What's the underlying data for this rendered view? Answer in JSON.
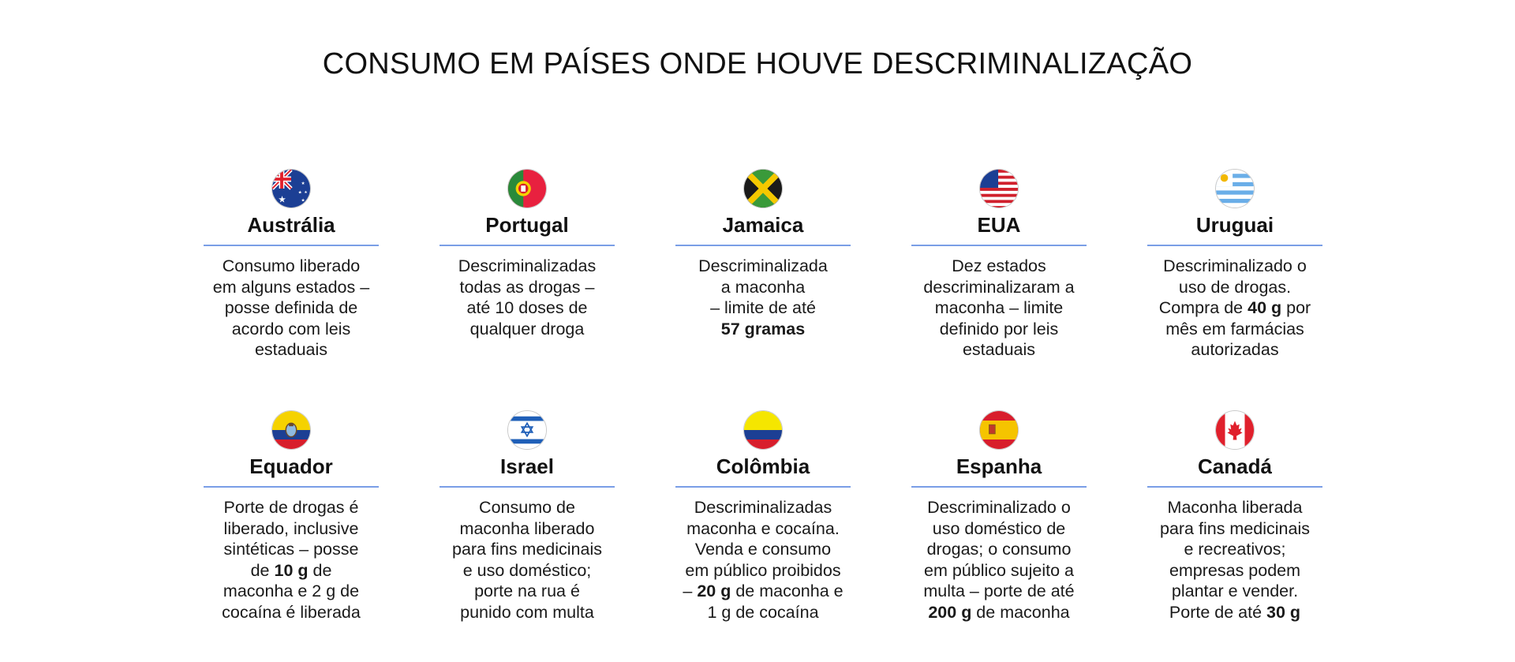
{
  "title": "CONSUMO EM PAÍSES ONDE HOUVE DESCRIMINALIZAÇÃO",
  "colors": {
    "rule": "#7a9ee6"
  },
  "countries": [
    {
      "name": "Austrália",
      "flag_icon": "australia-flag-icon",
      "desc": [
        "Consumo liberado",
        "em alguns estados –",
        "posse definida de",
        "acordo com leis",
        "estaduais"
      ]
    },
    {
      "name": "Portugal",
      "flag_icon": "portugal-flag-icon",
      "desc": [
        "Descriminalizadas",
        "todas as drogas –",
        "até 10 doses de",
        "qualquer droga"
      ]
    },
    {
      "name": "Jamaica",
      "flag_icon": "jamaica-flag-icon",
      "desc": [
        "Descriminalizada",
        "a maconha",
        "– limite de até"
      ],
      "bold_line": "57 gramas"
    },
    {
      "name": "EUA",
      "flag_icon": "usa-flag-icon",
      "desc": [
        "Dez estados",
        "descriminalizaram a",
        "maconha – limite",
        "definido por leis",
        "estaduais"
      ]
    },
    {
      "name": "Uruguai",
      "flag_icon": "uruguay-flag-icon",
      "desc_a": [
        "Descriminalizado o",
        "uso de drogas."
      ],
      "desc_b_pre": "Compra de ",
      "desc_b_bold": "40 g",
      "desc_b_post": " por",
      "desc_c": [
        "mês em farmácias",
        "autorizadas"
      ]
    },
    {
      "name": "Equador",
      "flag_icon": "ecuador-flag-icon",
      "desc_a": [
        "Porte de drogas é",
        "liberado, inclusive",
        "sintéticas – posse"
      ],
      "desc_b_pre": "de ",
      "desc_b_bold": "10 g",
      "desc_b_post": " de",
      "desc_c": [
        "maconha e 2 g de",
        "cocaína é liberada"
      ]
    },
    {
      "name": "Israel",
      "flag_icon": "israel-flag-icon",
      "desc": [
        "Consumo de",
        "maconha liberado",
        "para fins medicinais",
        "e uso doméstico;",
        "porte na rua é",
        "punido com multa"
      ]
    },
    {
      "name": "Colômbia",
      "flag_icon": "colombia-flag-icon",
      "desc_a": [
        "Descriminalizadas",
        "maconha e cocaína.",
        "Venda e consumo",
        "em público proibidos"
      ],
      "desc_b_pre": "– ",
      "desc_b_bold": "20 g",
      "desc_b_post": " de maconha e",
      "desc_c": [
        "1 g de cocaína"
      ]
    },
    {
      "name": "Espanha",
      "flag_icon": "spain-flag-icon",
      "desc_a": [
        "Descriminalizado o",
        "uso doméstico de",
        "drogas; o consumo",
        "em público sujeito a",
        "multa – porte de até"
      ],
      "desc_b_pre": "",
      "desc_b_bold": "200 g",
      "desc_b_post": " de maconha",
      "desc_c": []
    },
    {
      "name": "Canadá",
      "flag_icon": "canada-flag-icon",
      "desc_a": [
        "Maconha liberada",
        "para fins medicinais",
        "e recreativos;",
        "empresas podem",
        "plantar e vender."
      ],
      "desc_b_pre": "Porte de até ",
      "desc_b_bold": "30 g",
      "desc_b_post": "",
      "desc_c": []
    }
  ]
}
